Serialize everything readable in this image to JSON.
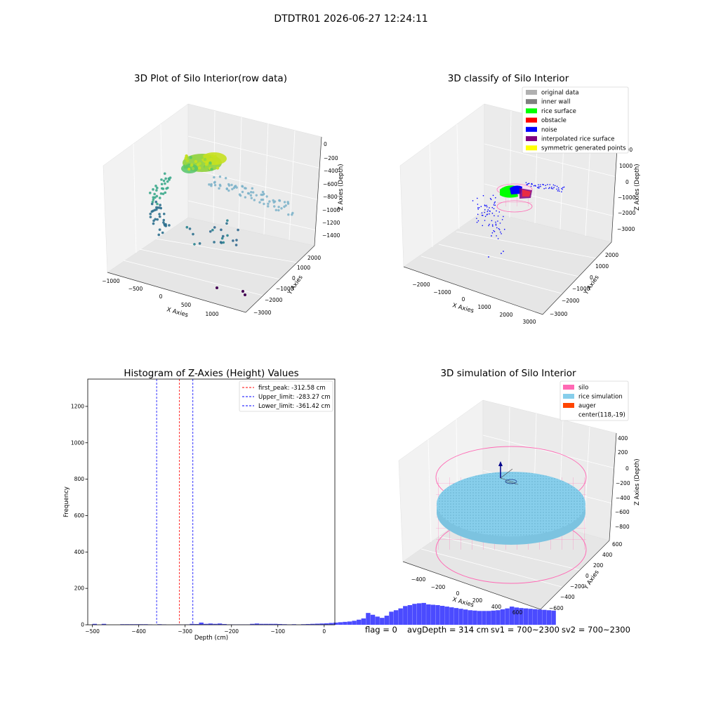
{
  "suptitle": "DTDTR01 2026-06-27 12:24:11",
  "footer": {
    "flag": "flag = 0",
    "avg_depth": "avgDepth = 314 cm",
    "sv1": "sv1 = 700~2300",
    "sv2": "sv2 = 700~2300"
  },
  "chart_data": [
    {
      "type": "scatter",
      "projection": "3d",
      "title": "3D Plot of Silo Interior(row data)",
      "xlabel": "X Axies",
      "ylabel": "Y Axies",
      "zlabel": "Z Axies (Depth)",
      "xticks": [
        "−1000",
        "−500",
        "0",
        "500",
        "1000"
      ],
      "yticks": [
        "2000",
        "1000",
        "0",
        "−1000",
        "−2000",
        "−3000"
      ],
      "zticks": [
        "0",
        "−200",
        "−400",
        "−600",
        "−800",
        "−1000",
        "−1200",
        "−1400"
      ],
      "colormap": "viridis",
      "grid": true
    },
    {
      "type": "scatter",
      "projection": "3d",
      "title": "3D classify of Silo Interior",
      "xlabel": "X Axies",
      "ylabel": "Y Axies",
      "zlabel": "Z Axies (Depth)",
      "xticks": [
        "−2000",
        "−1000",
        "0",
        "1000",
        "2000",
        "3000"
      ],
      "yticks": [
        "2000",
        "1000",
        "0",
        "−1000",
        "−2000",
        "−3000"
      ],
      "zticks": [
        "2000",
        "1000",
        "0",
        "−1000",
        "−2000",
        "−3000"
      ],
      "legend": [
        {
          "label": "original data",
          "color": "#b0b0b0"
        },
        {
          "label": "inner wall",
          "color": "#808080"
        },
        {
          "label": "rice surface",
          "color": "#00ff00"
        },
        {
          "label": "obstacle",
          "color": "#ff0000"
        },
        {
          "label": "noise",
          "color": "#0000ff"
        },
        {
          "label": "interpolated rice surface",
          "color": "#800080"
        },
        {
          "label": "symmetric generated points",
          "color": "#ffff00"
        }
      ],
      "legend_position": "top-right",
      "grid": true
    },
    {
      "type": "bar",
      "title": "Histogram of Z-Axies (Height) Values",
      "xlabel": "Depth (cm)",
      "ylabel": "Frequency",
      "xlim": [
        -510,
        23
      ],
      "ylim": [
        0,
        1350
      ],
      "xticks": [
        -500,
        -400,
        -300,
        -200,
        -100,
        0
      ],
      "xtick_labels": [
        "−500",
        "−400",
        "−300",
        "−200",
        "−100",
        "0"
      ],
      "yticks": [
        0,
        200,
        400,
        600,
        800,
        1000,
        1200
      ],
      "yticks_labels": [
        "0",
        "200",
        "400",
        "600",
        "800",
        "1000",
        "1200"
      ],
      "bin_start": -500,
      "bin_width": 10,
      "values": [
        5,
        0,
        5,
        0,
        0,
        0,
        3,
        3,
        3,
        3,
        3,
        3,
        2,
        0,
        3,
        2,
        0,
        1,
        2,
        1,
        2,
        5,
        4,
        12,
        5,
        7,
        5,
        7,
        4,
        2,
        2,
        2,
        2,
        2,
        5,
        7,
        5,
        5,
        5,
        5,
        4,
        3,
        2,
        3,
        1,
        3,
        4,
        5,
        6,
        7,
        8,
        10,
        12,
        14,
        16,
        18,
        22,
        28,
        35,
        65,
        55,
        45,
        38,
        50,
        72,
        80,
        90,
        103,
        108,
        115,
        118,
        120,
        112,
        110,
        108,
        104,
        100,
        96,
        92,
        88,
        84,
        80,
        78,
        76,
        76,
        76,
        78,
        80,
        85,
        90,
        100,
        95,
        92,
        90,
        88,
        86,
        84,
        82,
        80,
        78
      ],
      "legend": [
        {
          "label": "first_peak: -312.58 cm",
          "color": "#ff0000",
          "value": -312.58
        },
        {
          "label": "Upper_limit: -283.27 cm",
          "color": "#0000ff",
          "value": -283.27
        },
        {
          "label": "Lower_limit: -361.42 cm",
          "color": "#0000ff",
          "value": -361.42
        }
      ],
      "legend_position": "top-right",
      "bar_color": "#4b4bff"
    },
    {
      "type": "scatter",
      "projection": "3d",
      "title": "3D simulation of Silo Interior",
      "xlabel": "X Axies",
      "ylabel": "Y Axies",
      "zlabel": "Z Axies (Depth)",
      "xticks": [
        "−400",
        "−200",
        "0",
        "200",
        "400",
        "600"
      ],
      "yticks": [
        "600",
        "400",
        "200",
        "0",
        "−200",
        "−400",
        "−600"
      ],
      "zticks": [
        "400",
        "200",
        "0",
        "−200",
        "−400",
        "−600",
        "−800"
      ],
      "legend": [
        {
          "label": "silo",
          "color": "#ff69b4"
        },
        {
          "label": "rice simulation",
          "color": "#87ceeb"
        },
        {
          "label": "auger",
          "color": "#ff4500"
        },
        {
          "label": "center(118,-19)",
          "color": ""
        }
      ],
      "legend_position": "top-right",
      "grid": true
    }
  ]
}
